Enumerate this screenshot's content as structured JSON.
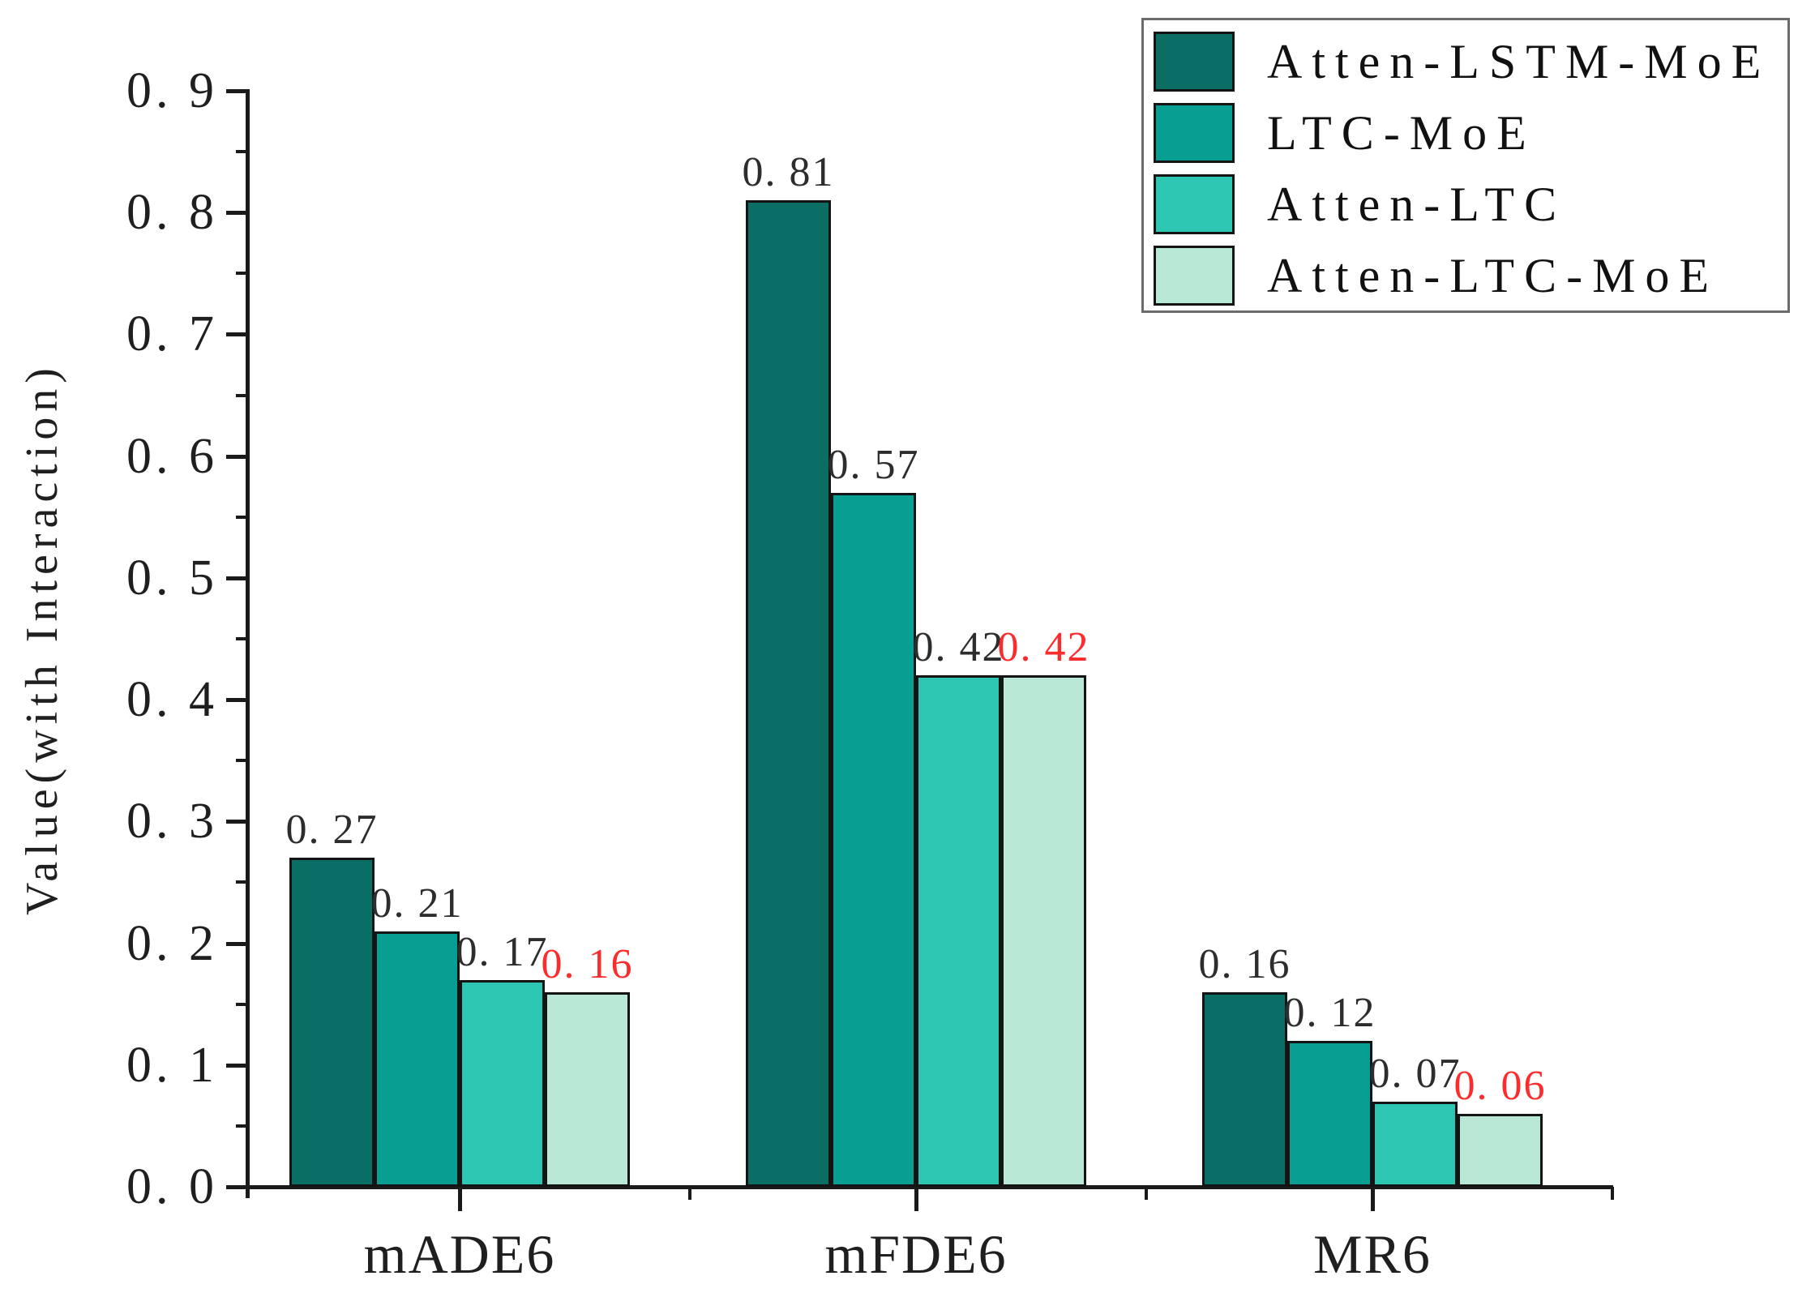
{
  "chart_data": {
    "type": "bar",
    "title": "",
    "ylabel": "Value(with Interaction)",
    "xlabel": "",
    "categories": [
      "mADE6",
      "mFDE6",
      "MR6"
    ],
    "series": [
      {
        "name": "Atten-LSTM-MoE",
        "color": "#0a6e64",
        "values": [
          0.27,
          0.81,
          0.16
        ],
        "value_labels": [
          "0. 27",
          "0. 81",
          "0. 16"
        ],
        "label_color": "#2d2d2d"
      },
      {
        "name": "LTC-MoE",
        "color": "#089e92",
        "values": [
          0.21,
          0.57,
          0.12
        ],
        "value_labels": [
          "0. 21",
          "0. 57",
          "0. 12"
        ],
        "label_color": "#2d2d2d"
      },
      {
        "name": "Atten-LTC",
        "color": "#2dc6b2",
        "values": [
          0.17,
          0.42,
          0.07
        ],
        "value_labels": [
          "0. 17",
          "0. 42",
          "0. 07"
        ],
        "label_color": "#2d2d2d"
      },
      {
        "name": "Atten-LTC-MoE",
        "color": "#b9e8d6",
        "values": [
          0.16,
          0.42,
          0.06
        ],
        "value_labels": [
          "0. 16",
          "0. 42",
          "0. 06"
        ],
        "label_color": "#fb2c2c"
      }
    ],
    "ylim": [
      0.0,
      0.9
    ],
    "yticks": {
      "major_labels": [
        "0. 0",
        "0. 1",
        "0. 2",
        "0. 3",
        "0. 4",
        "0. 5",
        "0. 6",
        "0. 7",
        "0. 8",
        "0. 9"
      ],
      "major_values": [
        0.0,
        0.1,
        0.2,
        0.3,
        0.4,
        0.5,
        0.6,
        0.7,
        0.8,
        0.9
      ],
      "minor_values": [
        0.05,
        0.15,
        0.25,
        0.35,
        0.45,
        0.55,
        0.65,
        0.75,
        0.85
      ]
    },
    "grid": false,
    "legend_position": "upper-right",
    "bar_edge_color": "#141414",
    "axis_color": "#1a1a1a"
  }
}
